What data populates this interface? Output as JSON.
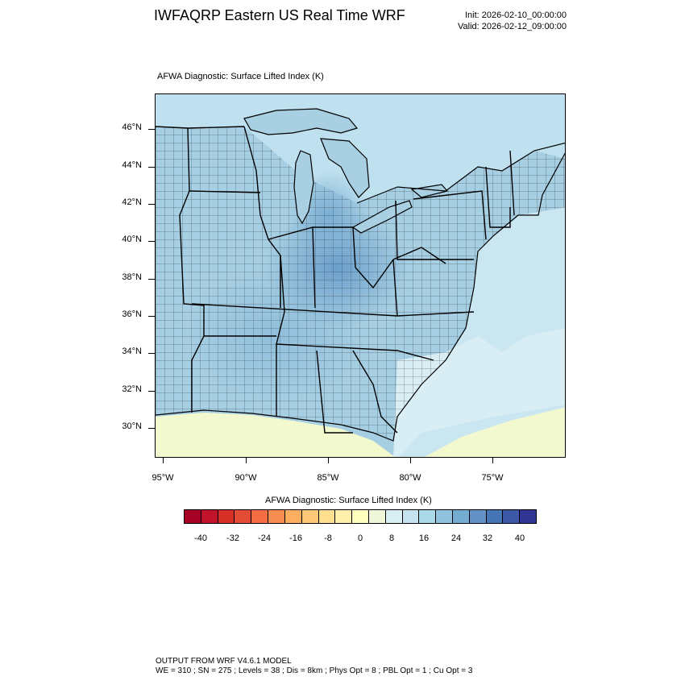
{
  "header": {
    "title": "IWFAQRP Eastern US Real Time WRF",
    "init": "Init: 2026-02-10_00:00:00",
    "valid": "Valid: 2026-02-12_09:00:00"
  },
  "map": {
    "subtitle": "AFWA Diagnostic: Surface Lifted Index   (K)",
    "lat_labels": [
      "46°N",
      "44°N",
      "42°N",
      "40°N",
      "38°N",
      "36°N",
      "34°N",
      "32°N",
      "30°N"
    ],
    "lon_labels": [
      "95°W",
      "90°W",
      "85°W",
      "80°W",
      "75°W"
    ],
    "colors": {
      "ocean_base": "#c9e6f1",
      "land_mid": "#a7cfe3",
      "land_dark": "#86b6d6",
      "land_darker": "#6fa3cc",
      "canada_light": "#bfe0ee",
      "gulf_yellow": "#f3f9cf",
      "southeast_light": "#d9eef4",
      "lake_color": "#a8cfe2"
    }
  },
  "colorbar": {
    "title": "AFWA Diagnostic: Surface Lifted Index  (K)",
    "tick_labels": [
      "-40",
      "-32",
      "-24",
      "-16",
      "-8",
      "0",
      "8",
      "16",
      "24",
      "32",
      "40"
    ],
    "colors": [
      "#a50026",
      "#c1142a",
      "#d73027",
      "#e34d35",
      "#f46d43",
      "#f88d52",
      "#fdae61",
      "#fdc877",
      "#fee090",
      "#feefaa",
      "#ffffbf",
      "#eef8d9",
      "#d9eff4",
      "#c5e3ee",
      "#abd9e9",
      "#91c3de",
      "#74add1",
      "#6592c6",
      "#4575b4",
      "#3d58a6",
      "#313695"
    ]
  },
  "footer": {
    "line1": "OUTPUT FROM WRF V4.6.1 MODEL",
    "line2": "WE = 310 ; SN = 275 ; Levels = 38 ; Dis = 8km ; Phys Opt = 8 ; PBL Opt = 1 ; Cu Opt = 3"
  }
}
